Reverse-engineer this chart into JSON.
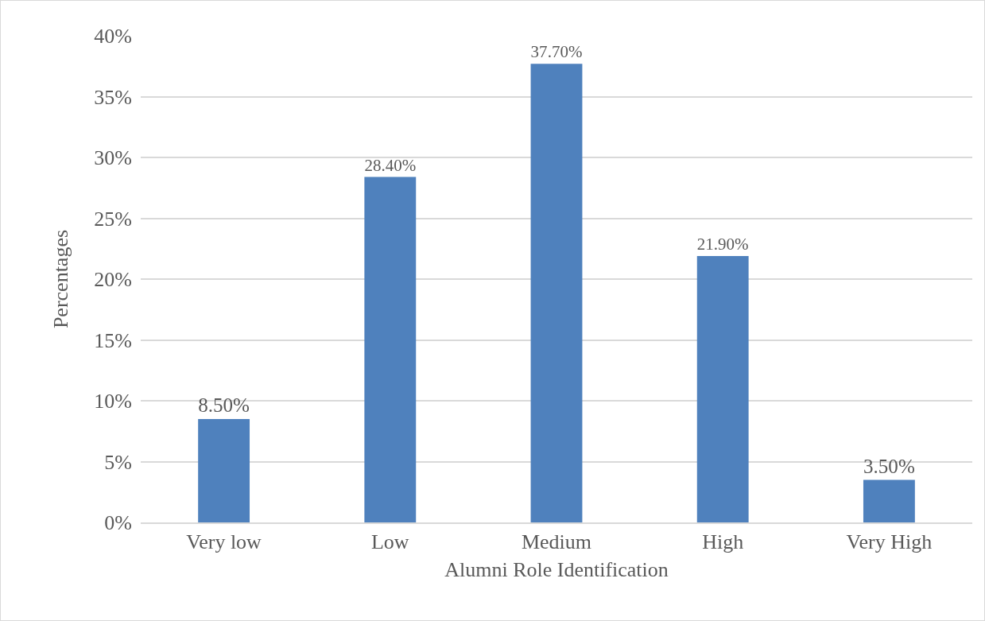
{
  "chart_data": {
    "type": "bar",
    "xlabel": "Alumni Role Identification",
    "ylabel": "Percentages",
    "categories": [
      "Very low",
      "Low",
      "Medium",
      "High",
      "Very High"
    ],
    "values": [
      8.5,
      28.4,
      37.7,
      21.9,
      3.5
    ],
    "value_labels": [
      "8.50%",
      "28.40%",
      "37.70%",
      "21.90%",
      "3.50%"
    ],
    "color": "#4f81bd",
    "ylim": [
      0,
      40
    ],
    "yticks": [
      {
        "value": 0,
        "label": "0%"
      },
      {
        "value": 5,
        "label": "5%"
      },
      {
        "value": 10,
        "label": "10%"
      },
      {
        "value": 15,
        "label": "15%"
      },
      {
        "value": 20,
        "label": "20%"
      },
      {
        "value": 25,
        "label": "25%"
      },
      {
        "value": 30,
        "label": "30%"
      },
      {
        "value": 35,
        "label": "35%"
      },
      {
        "value": 40,
        "label": "40%"
      }
    ],
    "grid": "y",
    "legend": false
  }
}
